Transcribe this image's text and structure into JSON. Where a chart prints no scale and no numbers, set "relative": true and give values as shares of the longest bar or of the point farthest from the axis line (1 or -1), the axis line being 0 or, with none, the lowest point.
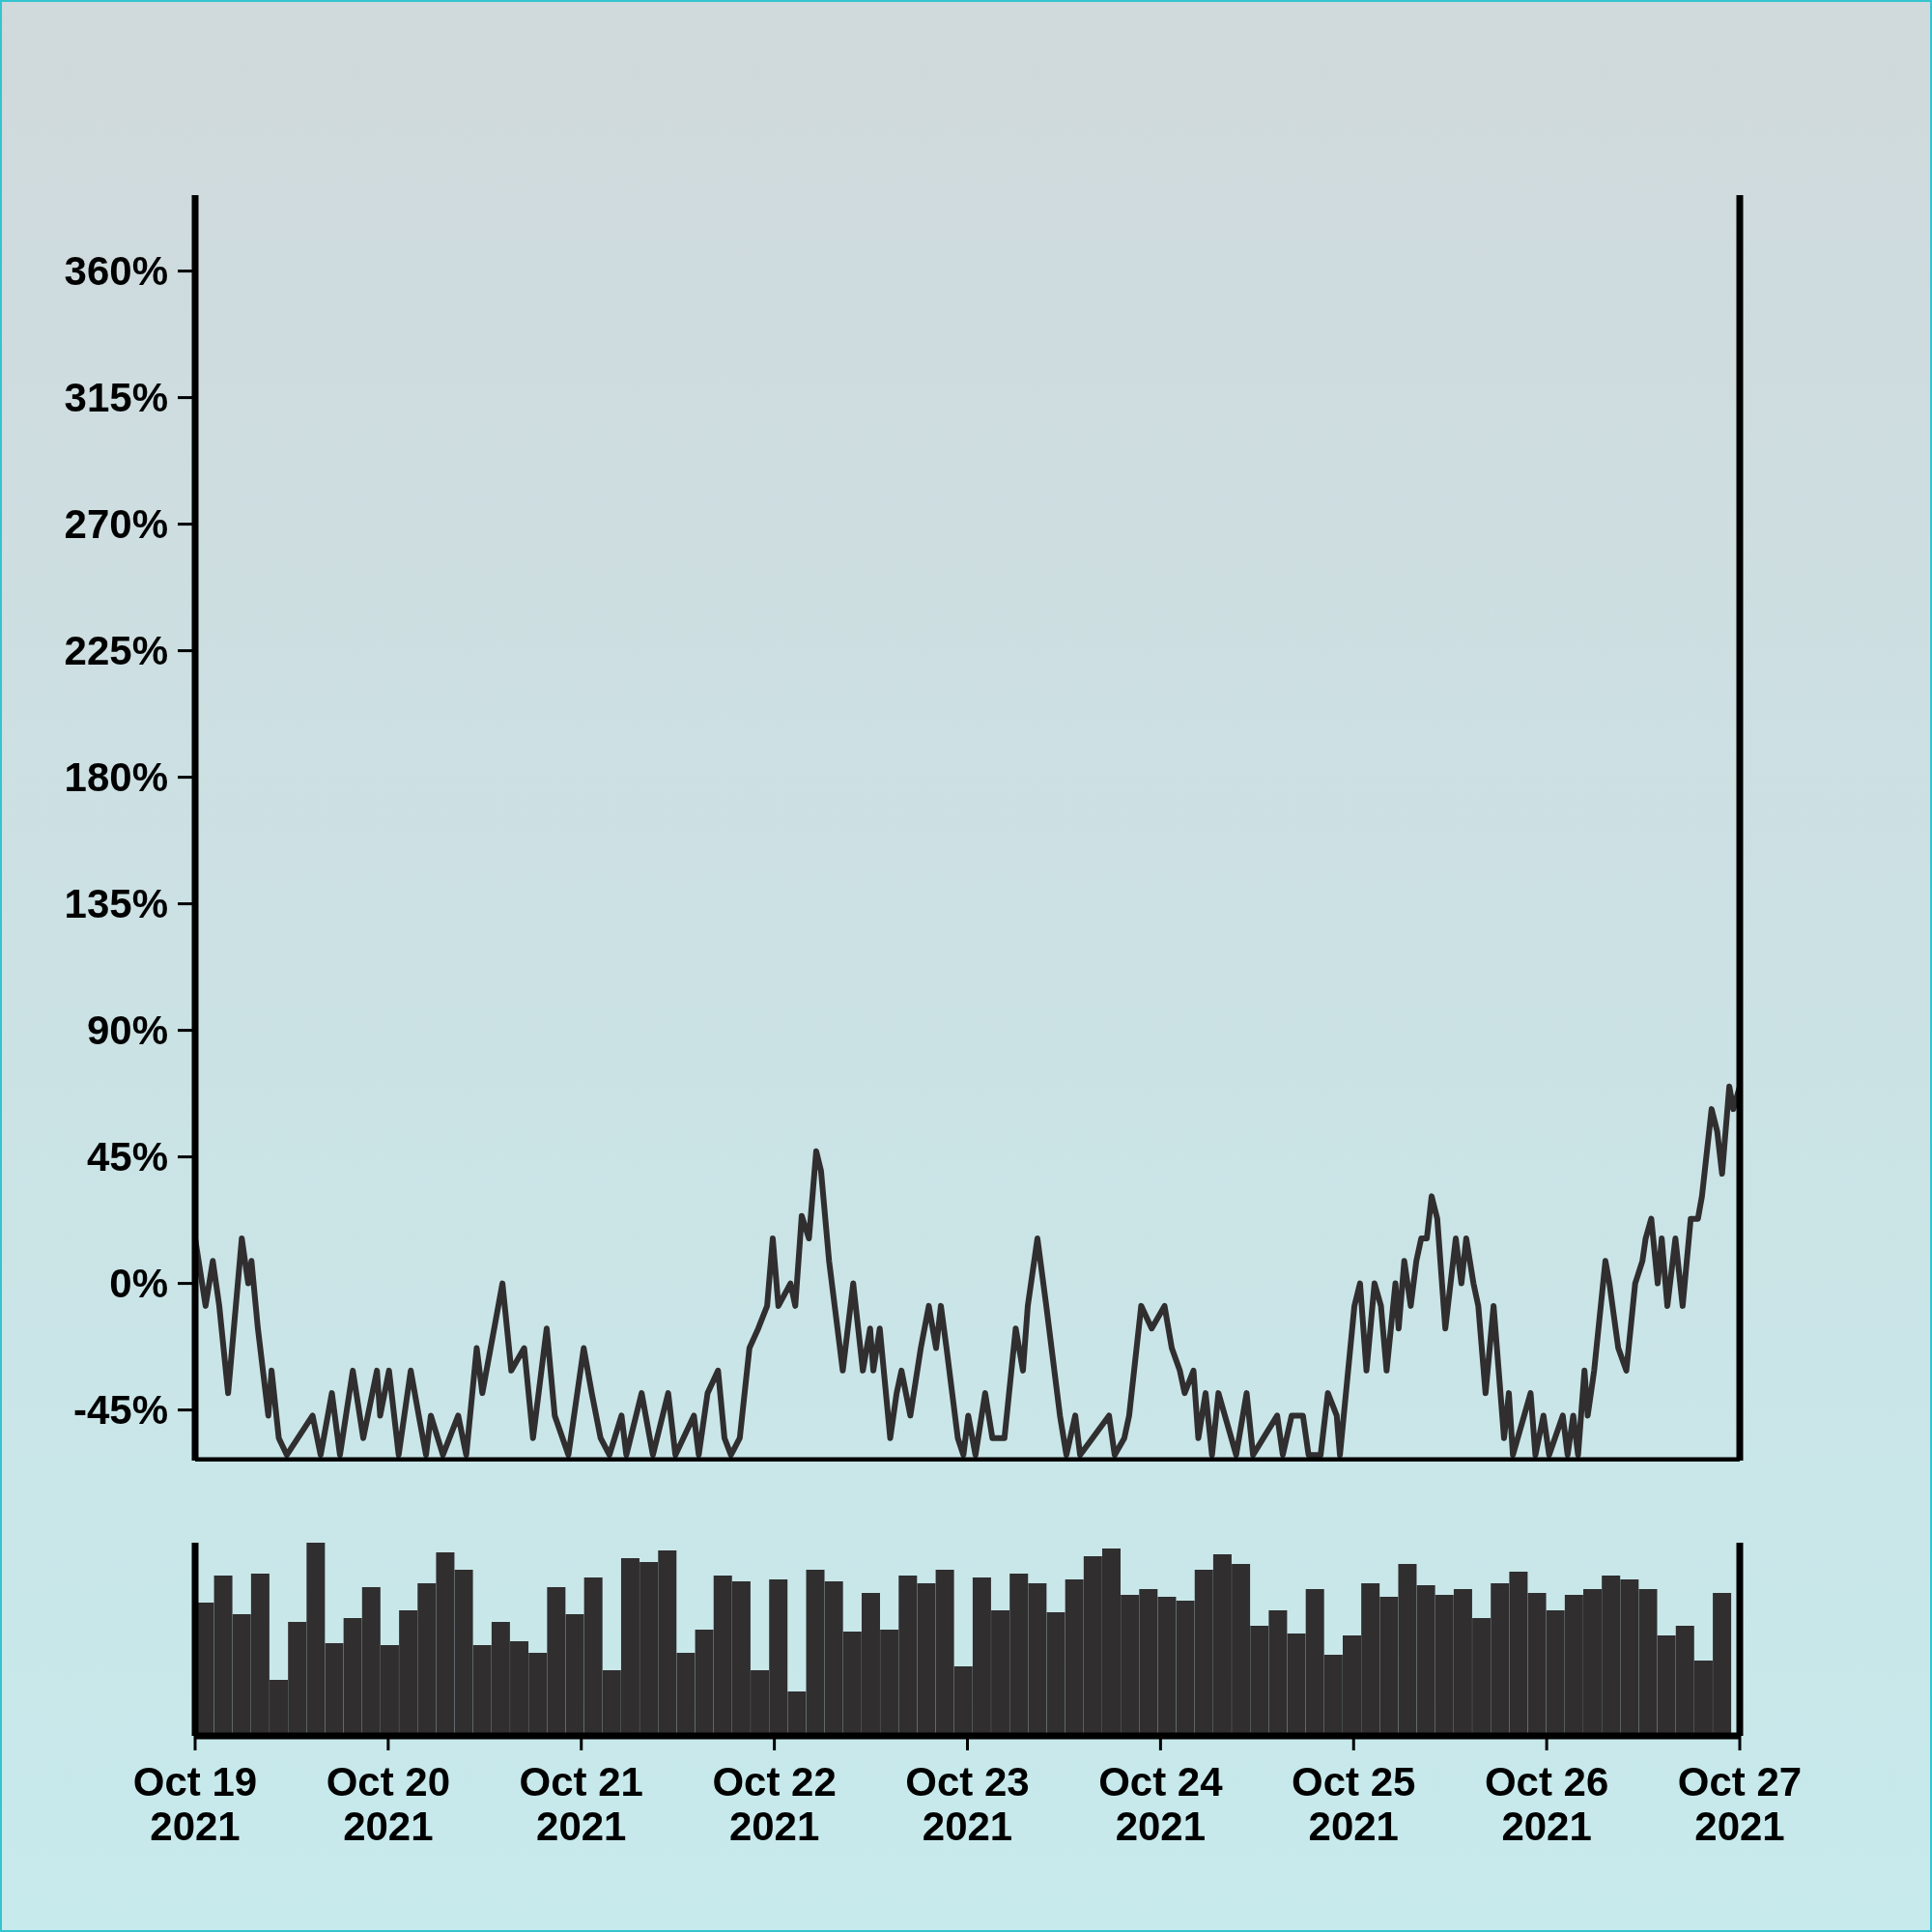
{
  "chart_data": [
    {
      "type": "line",
      "xlim": [
        "2021-10-19",
        "2021-10-27"
      ],
      "ylim": [
        -63,
        387
      ],
      "tick_labels": "y",
      "yticks": [
        {
          "value": -45,
          "label": "-45%"
        },
        {
          "value": 0,
          "label": "0%"
        },
        {
          "value": 45,
          "label": "45%"
        },
        {
          "value": 90,
          "label": "90%"
        },
        {
          "value": 135,
          "label": "135%"
        },
        {
          "value": 180,
          "label": "180%"
        },
        {
          "value": 225,
          "label": "225%"
        },
        {
          "value": 270,
          "label": "270%"
        },
        {
          "value": 315,
          "label": "315%"
        },
        {
          "value": 360,
          "label": "360%"
        }
      ],
      "series": [
        {
          "color": "#302e2f",
          "x": [
            "2021-10-19T00:00",
            "2021-10-19T01:18",
            "2021-10-19T02:12",
            "2021-10-19T03:00",
            "2021-10-19T04:06",
            "2021-10-19T05:48",
            "2021-10-19T06:36",
            "2021-10-19T07:00",
            "2021-10-19T07:48",
            "2021-10-19T09:06",
            "2021-10-19T09:30",
            "2021-10-19T10:24",
            "2021-10-19T11:24",
            "2021-10-19T14:36",
            "2021-10-19T15:36",
            "2021-10-19T17:00",
            "2021-10-19T18:00",
            "2021-10-19T19:36",
            "2021-10-19T20:54",
            "2021-10-19T22:36",
            "2021-10-19T23:00",
            "2021-10-20T00:06",
            "2021-10-20T01:18",
            "2021-10-20T02:48",
            "2021-10-20T03:48",
            "2021-10-20T04:42",
            "2021-10-20T05:18",
            "2021-10-20T06:48",
            "2021-10-20T08:42",
            "2021-10-20T09:42",
            "2021-10-20T11:00",
            "2021-10-20T11:42",
            "2021-10-20T14:12",
            "2021-10-20T15:18",
            "2021-10-20T16:54",
            "2021-10-20T18:00",
            "2021-10-20T19:42",
            "2021-10-20T20:42",
            "2021-10-20T22:24",
            "2021-10-21T00:18",
            "2021-10-21T01:18",
            "2021-10-21T02:24",
            "2021-10-21T03:30",
            "2021-10-21T05:00",
            "2021-10-21T05:36",
            "2021-10-21T07:30",
            "2021-10-21T08:54",
            "2021-10-21T10:48",
            "2021-10-21T11:42",
            "2021-10-21T14:00",
            "2021-10-21T14:36",
            "2021-10-21T15:42",
            "2021-10-21T17:00",
            "2021-10-21T17:48",
            "2021-10-21T18:36",
            "2021-10-21T19:42",
            "2021-10-21T20:54",
            "2021-10-21T22:00",
            "2021-10-21T23:06",
            "2021-10-21T23:48",
            "2021-10-22T00:30",
            "2021-10-22T02:00",
            "2021-10-22T02:36",
            "2021-10-22T03:24",
            "2021-10-22T04:18",
            "2021-10-22T05:12",
            "2021-10-22T05:48",
            "2021-10-22T06:48",
            "2021-10-22T08:30",
            "2021-10-22T09:48",
            "2021-10-22T11:00",
            "2021-10-22T11:54",
            "2021-10-22T12:18",
            "2021-10-22T13:06",
            "2021-10-22T14:24",
            "2021-10-22T15:12",
            "2021-10-22T15:48",
            "2021-10-22T16:54",
            "2021-10-22T18:12",
            "2021-10-22T19:12",
            "2021-10-22T20:06",
            "2021-10-22T20:42",
            "2021-10-22T21:24",
            "2021-10-22T22:48",
            "2021-10-22T23:30",
            "2021-10-23T00:06",
            "2021-10-23T01:00",
            "2021-10-23T02:12",
            "2021-10-23T03:06",
            "2021-10-23T04:36",
            "2021-10-23T06:00",
            "2021-10-23T06:54",
            "2021-10-23T07:30",
            "2021-10-23T08:42",
            "2021-10-23T09:48",
            "2021-10-23T11:30",
            "2021-10-23T12:18",
            "2021-10-23T13:24",
            "2021-10-23T14:00",
            "2021-10-23T17:36",
            "2021-10-23T18:18",
            "2021-10-23T19:30",
            "2021-10-23T20:06",
            "2021-10-23T21:36",
            "2021-10-23T22:54",
            "2021-10-24T00:30",
            "2021-10-24T01:24",
            "2021-10-24T02:24",
            "2021-10-24T03:00",
            "2021-10-24T04:06",
            "2021-10-24T04:42",
            "2021-10-24T05:36",
            "2021-10-24T06:24",
            "2021-10-24T07:12",
            "2021-10-24T09:24",
            "2021-10-24T10:42",
            "2021-10-24T11:30",
            "2021-10-24T14:30",
            "2021-10-24T15:12",
            "2021-10-24T16:18",
            "2021-10-24T17:42",
            "2021-10-24T18:24",
            "2021-10-24T19:54",
            "2021-10-24T20:48",
            "2021-10-24T21:54",
            "2021-10-24T22:18",
            "2021-10-25T00:06",
            "2021-10-25T00:48",
            "2021-10-25T01:36",
            "2021-10-25T02:36",
            "2021-10-25T03:24",
            "2021-10-25T04:06",
            "2021-10-25T05:12",
            "2021-10-25T05:36",
            "2021-10-25T06:18",
            "2021-10-25T07:06",
            "2021-10-25T07:48",
            "2021-10-25T08:24",
            "2021-10-25T09:06",
            "2021-10-25T09:42",
            "2021-10-25T10:24",
            "2021-10-25T11:24",
            "2021-10-25T12:42",
            "2021-10-25T13:24",
            "2021-10-25T14:00",
            "2021-10-25T14:54",
            "2021-10-25T15:30",
            "2021-10-25T16:24",
            "2021-10-25T17:24",
            "2021-10-25T18:42",
            "2021-10-25T19:18",
            "2021-10-25T19:48",
            "2021-10-25T22:00",
            "2021-10-25T22:36",
            "2021-10-25T23:36",
            "2021-10-26T00:18",
            "2021-10-26T02:00",
            "2021-10-26T02:36",
            "2021-10-26T03:18",
            "2021-10-26T03:54",
            "2021-10-26T04:42",
            "2021-10-26T05:06",
            "2021-10-26T05:54",
            "2021-10-26T07:18",
            "2021-10-26T07:48",
            "2021-10-26T08:54",
            "2021-10-26T09:54",
            "2021-10-26T11:00",
            "2021-10-26T11:54",
            "2021-10-26T12:18",
            "2021-10-26T13:00",
            "2021-10-26T13:48",
            "2021-10-26T14:18",
            "2021-10-26T15:00",
            "2021-10-26T16:00",
            "2021-10-26T16:54",
            "2021-10-26T17:54",
            "2021-10-26T18:48",
            "2021-10-26T19:18",
            "2021-10-26T20:30",
            "2021-10-26T21:12",
            "2021-10-26T21:48",
            "2021-10-26T22:42",
            "2021-10-26T23:12",
            "2021-10-27T00:00"
          ],
          "values": [
            16,
            -8,
            8,
            -8,
            -39,
            16,
            0,
            8,
            -16,
            -47,
            -31,
            -55,
            -61,
            -47,
            -61,
            -39,
            -61,
            -31,
            -55,
            -31,
            -47,
            -31,
            -61,
            -31,
            -47,
            -61,
            -47,
            -61,
            -47,
            -61,
            -23,
            -39,
            0,
            -31,
            -23,
            -55,
            -16,
            -47,
            -61,
            -23,
            -39,
            -55,
            -61,
            -47,
            -61,
            -39,
            -61,
            -39,
            -61,
            -47,
            -61,
            -39,
            -31,
            -55,
            -61,
            -55,
            -23,
            -16,
            -8,
            16,
            -8,
            0,
            -8,
            24,
            16,
            47,
            40,
            8,
            -31,
            0,
            -31,
            -16,
            -31,
            -16,
            -55,
            -39,
            -31,
            -47,
            -23,
            -8,
            -23,
            -8,
            -23,
            -55,
            -61,
            -47,
            -61,
            -39,
            -55,
            -55,
            -16,
            -31,
            -8,
            16,
            -8,
            -47,
            -61,
            -47,
            -61,
            -47,
            -61,
            -55,
            -47,
            -8,
            -16,
            -8,
            -23,
            -31,
            -39,
            -31,
            -55,
            -39,
            -61,
            -39,
            -61,
            -39,
            -61,
            -47,
            -61,
            -47,
            -47,
            -61,
            -61,
            -39,
            -47,
            -61,
            -8,
            0,
            -31,
            0,
            -8,
            -31,
            0,
            -16,
            8,
            -8,
            8,
            16,
            16,
            31,
            23,
            -16,
            16,
            0,
            16,
            0,
            -8,
            -39,
            -8,
            -55,
            -39,
            -61,
            -39,
            -61,
            -47,
            -61,
            -47,
            -61,
            -47,
            -61,
            -31,
            -47,
            -31,
            8,
            0,
            -23,
            -31,
            0,
            8,
            16,
            23,
            0,
            16,
            -8,
            16,
            -8,
            23,
            23,
            31,
            62,
            54,
            39,
            70,
            62,
            70
          ]
        }
      ]
    },
    {
      "type": "bar",
      "relative": true,
      "xlim": [
        "2021-10-19",
        "2021-10-27"
      ],
      "xticks": [
        {
          "value": "2021-10-19",
          "label": "Oct 19 2021"
        },
        {
          "value": "2021-10-20",
          "label": "Oct 20 2021"
        },
        {
          "value": "2021-10-21",
          "label": "Oct 21 2021"
        },
        {
          "value": "2021-10-22",
          "label": "Oct 22 2021"
        },
        {
          "value": "2021-10-23",
          "label": "Oct 23 2021"
        },
        {
          "value": "2021-10-24",
          "label": "Oct 24 2021"
        },
        {
          "value": "2021-10-25",
          "label": "Oct 25 2021"
        },
        {
          "value": "2021-10-26",
          "label": "Oct 26 2021"
        },
        {
          "value": "2021-10-27",
          "label": "Oct 27 2021"
        }
      ],
      "x": [
        "2021-10-19T01:12",
        "2021-10-19T03:30",
        "2021-10-19T05:48",
        "2021-10-19T08:06",
        "2021-10-19T10:24",
        "2021-10-19T12:42",
        "2021-10-19T15:00",
        "2021-10-19T17:18",
        "2021-10-19T19:36",
        "2021-10-19T21:54",
        "2021-10-20T00:12",
        "2021-10-20T02:30",
        "2021-10-20T04:48",
        "2021-10-20T07:06",
        "2021-10-20T09:24",
        "2021-10-20T11:42",
        "2021-10-20T14:00",
        "2021-10-20T16:18",
        "2021-10-20T18:36",
        "2021-10-20T20:54",
        "2021-10-20T23:12",
        "2021-10-21T01:30",
        "2021-10-21T03:48",
        "2021-10-21T06:06",
        "2021-10-21T08:24",
        "2021-10-21T10:42",
        "2021-10-21T13:00",
        "2021-10-21T15:18",
        "2021-10-21T17:36",
        "2021-10-21T19:54",
        "2021-10-21T22:12",
        "2021-10-22T00:30",
        "2021-10-22T02:48",
        "2021-10-22T05:06",
        "2021-10-22T07:24",
        "2021-10-22T09:42",
        "2021-10-22T12:00",
        "2021-10-22T14:18",
        "2021-10-22T16:36",
        "2021-10-22T18:54",
        "2021-10-22T21:12",
        "2021-10-22T23:30",
        "2021-10-23T01:48",
        "2021-10-23T04:06",
        "2021-10-23T06:24",
        "2021-10-23T08:42",
        "2021-10-23T11:00",
        "2021-10-23T13:18",
        "2021-10-23T15:36",
        "2021-10-23T17:54",
        "2021-10-23T20:12",
        "2021-10-23T22:30",
        "2021-10-24T00:48",
        "2021-10-24T03:06",
        "2021-10-24T05:24",
        "2021-10-24T07:42",
        "2021-10-24T10:00",
        "2021-10-24T12:18",
        "2021-10-24T14:36",
        "2021-10-24T16:54",
        "2021-10-24T19:12",
        "2021-10-24T21:30",
        "2021-10-24T23:48",
        "2021-10-25T02:06",
        "2021-10-25T04:24",
        "2021-10-25T06:42",
        "2021-10-25T09:00",
        "2021-10-25T11:18",
        "2021-10-25T13:36",
        "2021-10-25T15:54",
        "2021-10-25T18:12",
        "2021-10-25T20:30",
        "2021-10-25T22:48",
        "2021-10-26T01:06",
        "2021-10-26T03:24",
        "2021-10-26T05:42",
        "2021-10-26T08:00",
        "2021-10-26T10:18",
        "2021-10-26T12:36",
        "2021-10-26T14:54",
        "2021-10-26T17:12",
        "2021-10-26T19:30",
        "2021-10-26T21:48"
      ],
      "color": "#302e2f",
      "values": [
        0.69,
        0.83,
        0.63,
        0.84,
        0.29,
        0.59,
        1,
        0.48,
        0.61,
        0.77,
        0.47,
        0.65,
        0.79,
        0.95,
        0.86,
        0.47,
        0.59,
        0.49,
        0.43,
        0.77,
        0.63,
        0.82,
        0.34,
        0.92,
        0.9,
        0.96,
        0.43,
        0.55,
        0.83,
        0.8,
        0.34,
        0.81,
        0.23,
        0.86,
        0.8,
        0.54,
        0.74,
        0.55,
        0.83,
        0.79,
        0.86,
        0.36,
        0.82,
        0.65,
        0.84,
        0.79,
        0.64,
        0.81,
        0.93,
        0.97,
        0.73,
        0.76,
        0.72,
        0.7,
        0.86,
        0.94,
        0.89,
        0.57,
        0.65,
        0.53,
        0.76,
        0.42,
        0.52,
        0.79,
        0.72,
        0.89,
        0.78,
        0.73,
        0.76,
        0.61,
        0.79,
        0.85,
        0.74,
        0.65,
        0.73,
        0.76,
        0.83,
        0.81,
        0.76,
        0.52,
        0.57,
        0.39,
        0.74
      ]
    }
  ]
}
